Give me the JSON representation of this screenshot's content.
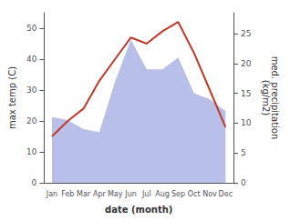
{
  "chart_data": {
    "type": "line",
    "categories": [
      "Jan",
      "Feb",
      "Mar",
      "Apr",
      "May",
      "Jun",
      "Jul",
      "Aug",
      "Sep",
      "Oct",
      "Nov",
      "Dec"
    ],
    "xlabel": "date (month)",
    "ylabel": "max temp (C)",
    "y2label": "med. precipitation\n(kg/m2)",
    "series": [
      {
        "type": "area",
        "axis": "y2",
        "color": "#b8bfe8",
        "values": [
          11,
          10.5,
          9,
          8.5,
          17,
          24,
          19,
          19,
          21,
          15,
          14,
          12
        ]
      },
      {
        "type": "line",
        "color": "#c0392b",
        "values": [
          15,
          20,
          24,
          33,
          40,
          47,
          45,
          49,
          52,
          42,
          30,
          18
        ]
      }
    ],
    "ylim": [
      0,
      55
    ],
    "yticks": [
      0,
      10,
      20,
      30,
      40,
      50
    ],
    "y2lim": [
      0,
      28.5
    ],
    "y2ticks": [
      0,
      5,
      10,
      15,
      20,
      25
    ],
    "grid": false
  }
}
